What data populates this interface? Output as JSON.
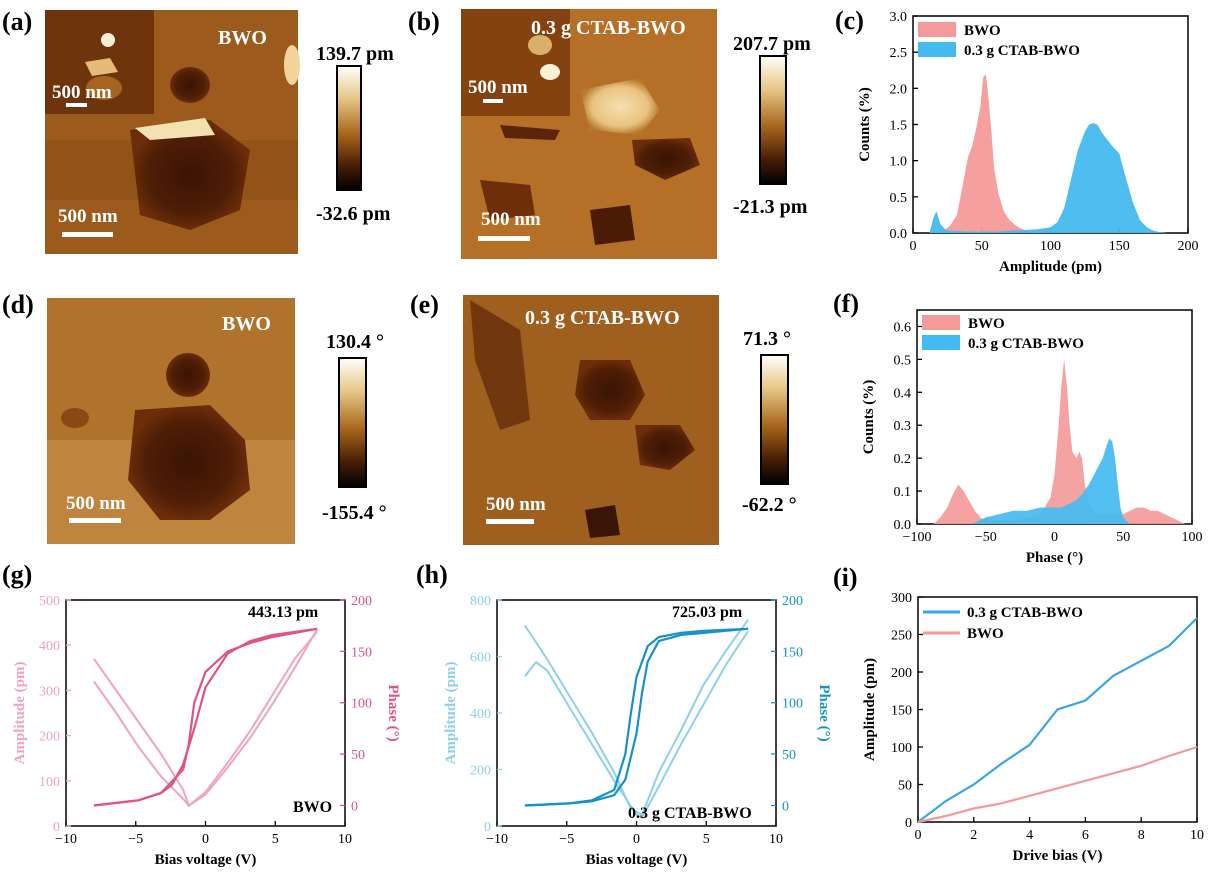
{
  "colors": {
    "bwo_fill": "#f49a9a",
    "ctab_fill": "#44bbf0",
    "bwo_amp_line": "#f0a3c2",
    "bwo_phase_line": "#e0557f",
    "ctab_amp_line": "#8fd0ee",
    "ctab_phase_line": "#1593c8",
    "drive_ctab": "#3aa7e4",
    "drive_bwo": "#f39a95"
  },
  "afm_panels": [
    {
      "label": "(a)",
      "title": "BWO",
      "scalebar": "500 nm",
      "inset_scalebar": "500 nm",
      "cbar_max": "139.7 pm",
      "cbar_min": "-32.6 pm",
      "cmap": "copper"
    },
    {
      "label": "(b)",
      "title": "0.3 g CTAB-BWO",
      "scalebar": "500 nm",
      "inset_scalebar": "500 nm",
      "cbar_max": "207.7 pm",
      "cbar_min": "-21.3 pm",
      "cmap": "copper"
    },
    {
      "label": "(d)",
      "title": "BWO",
      "scalebar": "500 nm",
      "cbar_max": "130.4 °",
      "cbar_min": "-155.4 °",
      "cmap": "copper"
    },
    {
      "label": "(e)",
      "title": "0.3 g CTAB-BWO",
      "scalebar": "500 nm",
      "cbar_max": "71.3 °",
      "cbar_min": "-62.2 °",
      "cmap": "copper"
    }
  ],
  "chart_data": [
    {
      "label": "(c)",
      "type": "area",
      "xlabel": "Amplitude (pm)",
      "ylabel": "Counts (%)",
      "xlim": [
        0,
        200
      ],
      "ylim": [
        0,
        3.0
      ],
      "xticks": [
        "0",
        "50",
        "100",
        "150",
        "200"
      ],
      "yticks": [
        "0.0",
        "0.5",
        "1.0",
        "1.5",
        "2.0",
        "2.5",
        "3.0"
      ],
      "legend_position": "top-left",
      "series": [
        {
          "name": "BWO",
          "x": [
            17,
            22,
            27,
            32,
            37,
            40,
            43,
            46,
            49,
            51,
            53,
            55,
            57,
            59,
            62,
            66,
            70,
            75,
            80,
            85,
            90
          ],
          "y": [
            0,
            0.03,
            0.1,
            0.25,
            0.75,
            1.05,
            1.2,
            1.45,
            1.75,
            2.15,
            2.2,
            1.85,
            1.4,
            0.9,
            0.55,
            0.3,
            0.18,
            0.1,
            0.05,
            0.02,
            0
          ]
        },
        {
          "name": "0.3 g CTAB-BWO",
          "x": [
            12,
            15,
            17,
            20,
            24,
            30,
            40,
            50,
            60,
            70,
            80,
            90,
            100,
            105,
            110,
            115,
            120,
            125,
            128,
            131,
            134,
            137,
            140,
            145,
            150,
            155,
            160,
            165,
            170,
            175,
            180,
            185
          ],
          "y": [
            0,
            0.22,
            0.3,
            0.12,
            0.04,
            0.03,
            0.02,
            0.02,
            0.02,
            0.03,
            0.04,
            0.05,
            0.08,
            0.15,
            0.35,
            0.75,
            1.15,
            1.4,
            1.5,
            1.52,
            1.5,
            1.4,
            1.32,
            1.2,
            1.1,
            0.75,
            0.42,
            0.18,
            0.08,
            0.03,
            0.01,
            0
          ]
        }
      ]
    },
    {
      "label": "(f)",
      "type": "area",
      "xlabel": "Phase (°)",
      "ylabel": "Counts (%)",
      "xlim": [
        -100,
        100
      ],
      "ylim": [
        0,
        0.65
      ],
      "xticks": [
        "−100",
        "−50",
        "0",
        "50",
        "100"
      ],
      "yticks": [
        "0.0",
        "0.1",
        "0.2",
        "0.3",
        "0.4",
        "0.5",
        "0.6"
      ],
      "legend_position": "top-left",
      "series": [
        {
          "name": "BWO",
          "x": [
            -88,
            -83,
            -78,
            -74,
            -70,
            -66,
            -62,
            -58,
            -54,
            -50,
            -40,
            -30,
            -20,
            -10,
            -3,
            0,
            3,
            5,
            7,
            9,
            11,
            13,
            16,
            18,
            20,
            22,
            25,
            28,
            32,
            36,
            40,
            45,
            50,
            55,
            60,
            65,
            70,
            75,
            80,
            85,
            90,
            95
          ],
          "y": [
            0,
            0.02,
            0.05,
            0.09,
            0.12,
            0.1,
            0.07,
            0.04,
            0.02,
            0.01,
            0.01,
            0.01,
            0.02,
            0.03,
            0.08,
            0.15,
            0.3,
            0.42,
            0.5,
            0.42,
            0.3,
            0.22,
            0.2,
            0.22,
            0.2,
            0.12,
            0.06,
            0.04,
            0.03,
            0.03,
            0.03,
            0.03,
            0.03,
            0.04,
            0.05,
            0.05,
            0.04,
            0.04,
            0.03,
            0.02,
            0.01,
            0
          ]
        },
        {
          "name": "0.3 g CTAB-BWO",
          "x": [
            -60,
            -50,
            -40,
            -30,
            -20,
            -10,
            0,
            5,
            10,
            15,
            20,
            25,
            30,
            35,
            38,
            40,
            42,
            44,
            46,
            48,
            50,
            52,
            55
          ],
          "y": [
            0,
            0.02,
            0.03,
            0.04,
            0.04,
            0.05,
            0.05,
            0.05,
            0.06,
            0.07,
            0.09,
            0.12,
            0.16,
            0.2,
            0.24,
            0.26,
            0.25,
            0.2,
            0.12,
            0.05,
            0.02,
            0.01,
            0
          ]
        }
      ]
    },
    {
      "label": "(g)",
      "type": "line",
      "xlabel": "Bias voltage (V)",
      "ylabel": "Amplitude (pm)",
      "y2label": "Phase (°)",
      "xlim": [
        -12.5,
        12.5
      ],
      "ylim": [
        0,
        500
      ],
      "y2lim": [
        -20,
        200
      ],
      "xticks": [
        "−10",
        "−5",
        "0",
        "5",
        "10"
      ],
      "yticks": [
        "0",
        "100",
        "200",
        "300",
        "400",
        "500"
      ],
      "y2ticks": [
        "0",
        "50",
        "100",
        "150",
        "200"
      ],
      "annotation": "443.13 pm",
      "sample": "BWO",
      "amplitude": {
        "x": [
          -10,
          -8,
          -6,
          -4,
          -2,
          -1.5,
          0,
          2,
          4,
          6,
          8,
          10
        ],
        "y": [
          370,
          300,
          230,
          160,
          80,
          45,
          70,
          130,
          195,
          270,
          350,
          435
        ]
      },
      "amplitude2": {
        "x": [
          -10,
          -8,
          -6,
          -4,
          -2,
          -1.5,
          0,
          2,
          4,
          6,
          8,
          10
        ],
        "y": [
          320,
          250,
          175,
          110,
          60,
          45,
          75,
          140,
          210,
          290,
          370,
          430
        ]
      },
      "phase_up": {
        "x": [
          -10,
          -6,
          -4,
          -2,
          -1.5,
          -1,
          0,
          2,
          4,
          6,
          8,
          10
        ],
        "y": [
          0,
          5,
          12,
          35,
          60,
          100,
          130,
          150,
          158,
          164,
          168,
          172
        ]
      },
      "phase_down": {
        "x": [
          10,
          6,
          4,
          2,
          0,
          -1,
          -2,
          -3,
          -4,
          -6,
          -10
        ],
        "y": [
          172,
          166,
          160,
          148,
          115,
          75,
          40,
          20,
          12,
          5,
          0
        ]
      }
    },
    {
      "label": "(h)",
      "type": "line",
      "xlabel": "Bias voltage (V)",
      "ylabel": "Amplitude (pm)",
      "y2label": "Phase (°)",
      "xlim": [
        -12.5,
        12.5
      ],
      "ylim": [
        0,
        800
      ],
      "y2lim": [
        -20,
        200
      ],
      "xticks": [
        "−10",
        "−5",
        "0",
        "5",
        "10"
      ],
      "yticks": [
        "0",
        "200",
        "400",
        "600",
        "800"
      ],
      "y2ticks": [
        "0",
        "50",
        "100",
        "150",
        "200"
      ],
      "annotation": "725.03 pm",
      "sample": "0.3 g CTAB-BWO",
      "amplitude": {
        "x": [
          -10,
          -9,
          -8,
          -6,
          -4,
          -2,
          -0.5,
          0.5,
          2,
          4,
          6,
          8,
          10
        ],
        "y": [
          710,
          650,
          590,
          460,
          330,
          190,
          60,
          40,
          190,
          340,
          500,
          620,
          730
        ]
      },
      "amplitude2": {
        "x": [
          -10,
          -9,
          -8,
          -6,
          -4,
          -2,
          0,
          0.5,
          2,
          4,
          6,
          8,
          10
        ],
        "y": [
          530,
          580,
          550,
          420,
          290,
          160,
          40,
          30,
          140,
          290,
          430,
          570,
          690
        ]
      },
      "phase_up": {
        "x": [
          -10,
          -6,
          -4,
          -2,
          -1,
          0,
          0.5,
          1,
          2,
          4,
          6,
          8,
          10
        ],
        "y": [
          0,
          2,
          4,
          10,
          25,
          70,
          110,
          140,
          160,
          166,
          168,
          170,
          172
        ]
      },
      "phase_down": {
        "x": [
          10,
          6,
          4,
          2,
          1,
          0,
          -0.5,
          -1,
          -2,
          -4,
          -6,
          -10
        ],
        "y": [
          172,
          170,
          168,
          164,
          155,
          125,
          90,
          50,
          15,
          5,
          2,
          0
        ]
      }
    },
    {
      "label": "(i)",
      "type": "line",
      "xlabel": "Drive bias (V)",
      "ylabel": "Amplitude (pm)",
      "xlim": [
        0,
        10
      ],
      "ylim": [
        0,
        300
      ],
      "xticks": [
        "0",
        "2",
        "4",
        "6",
        "8",
        "10"
      ],
      "yticks": [
        "0",
        "50",
        "100",
        "150",
        "200",
        "250",
        "300"
      ],
      "legend_position": "top-left",
      "series": [
        {
          "name": "0.3 g CTAB-BWO",
          "x": [
            0,
            1,
            2,
            3,
            4,
            5,
            6,
            7,
            8,
            9,
            10
          ],
          "y": [
            0,
            28,
            50,
            78,
            103,
            150,
            162,
            195,
            215,
            235,
            272
          ]
        },
        {
          "name": "BWO",
          "x": [
            0,
            1,
            2,
            3,
            4,
            5,
            6,
            7,
            8,
            9,
            10
          ],
          "y": [
            0,
            8,
            18,
            25,
            35,
            45,
            55,
            65,
            75,
            88,
            100
          ]
        }
      ]
    }
  ]
}
